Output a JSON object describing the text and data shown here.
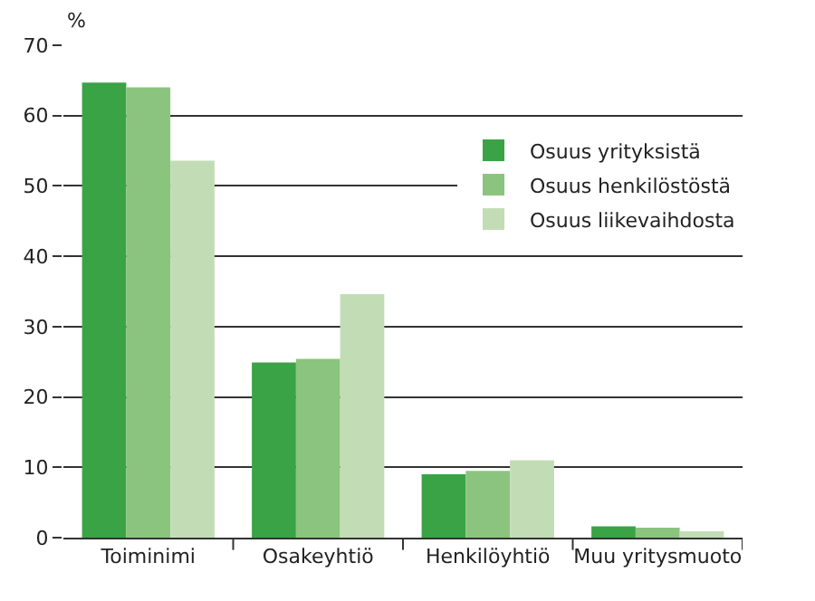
{
  "chart_data": {
    "type": "bar",
    "ylabel": "%",
    "categories": [
      "Toiminimi",
      "Osakeyhtiö",
      "Henkilöyhtiö",
      "Muu yritysmuoto"
    ],
    "series": [
      {
        "name": "Osuus yrityksistä",
        "color": "#3aa345",
        "values": [
          64.7,
          24.9,
          9.0,
          1.6
        ]
      },
      {
        "name": "Osuus henkilöstöstä",
        "color": "#8bc47e",
        "values": [
          64.0,
          25.4,
          9.5,
          1.4
        ]
      },
      {
        "name": "Osuus liikevaihdosta",
        "color": "#c2ddb5",
        "values": [
          53.6,
          34.6,
          11.0,
          0.9
        ]
      }
    ],
    "ylim": [
      0,
      70
    ],
    "yticks": [
      0,
      10,
      20,
      30,
      40,
      50,
      60,
      70
    ],
    "grid": "y",
    "legend": "top right"
  }
}
